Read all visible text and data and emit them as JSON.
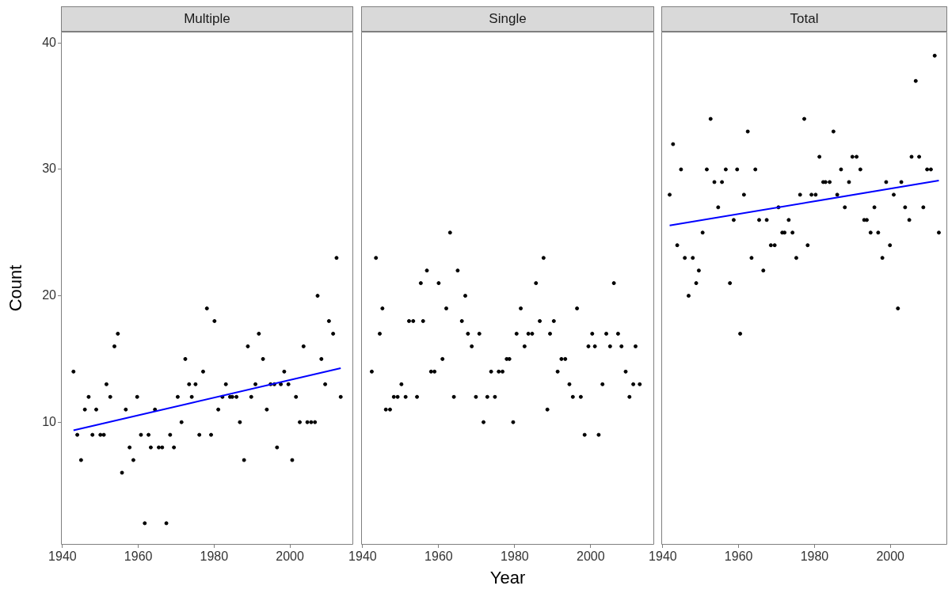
{
  "chart_data": [
    {
      "type": "scatter",
      "title": "Multiple",
      "ylabel": "Count",
      "xlim": [
        1939.6,
        2016.7
      ],
      "xticks": [
        1940,
        1960,
        1980,
        2000
      ],
      "ylim": [
        0.3,
        40.9
      ],
      "yticks": [
        10,
        20,
        30,
        40
      ],
      "marker": "circle",
      "grid": false,
      "series": [
        {
          "color": "#000000",
          "x": [
            1942.9,
            1943.9,
            1944.9,
            1945.9,
            1946.9,
            1947.9,
            1948.9,
            1950.0,
            1950.9,
            1951.6,
            1952.6,
            1953.7,
            1954.6,
            1955.7,
            1956.7,
            1957.7,
            1958.7,
            1959.7,
            1960.7,
            1961.7,
            1962.7,
            1963.3,
            1964.4,
            1965.4,
            1966.3,
            1967.4,
            1968.4,
            1969.4,
            1970.4,
            1971.4,
            1972.4,
            1973.4,
            1974.1,
            1975.1,
            1976.1,
            1977.1,
            1978.1,
            1979.2,
            1980.1,
            1981.1,
            1982.2,
            1983.1,
            1984.2,
            1984.8,
            1985.9,
            1986.8,
            1987.9,
            1988.9,
            1989.8,
            1990.9,
            1991.8,
            1992.9,
            1993.9,
            1994.9,
            1995.9,
            1996.6,
            1997.6,
            1998.5,
            1999.6,
            2000.6,
            2001.6,
            2002.6,
            2003.6,
            2004.6,
            2005.6,
            2006.6,
            2007.3,
            2008.3,
            2009.3,
            2010.3,
            2011.4,
            2012.3,
            2013.4
          ],
          "values": [
            14,
            9,
            7,
            11,
            12,
            9,
            11,
            9,
            9,
            13,
            12,
            16,
            17,
            6,
            11,
            8,
            7,
            12,
            9,
            2,
            9,
            8,
            11,
            8,
            8,
            2,
            9,
            8,
            12,
            10,
            15,
            13,
            12,
            13,
            9,
            14,
            19,
            9,
            18,
            11,
            12,
            13,
            12,
            12,
            12,
            10,
            7,
            16,
            12,
            13,
            17,
            15,
            11,
            13,
            13,
            8,
            13,
            14,
            13,
            7,
            12,
            10,
            16,
            10,
            10,
            10,
            20,
            15,
            13,
            18,
            17,
            23,
            12
          ]
        },
        {
          "type": "line",
          "marker": "none",
          "color": "#0000ff",
          "x": [
            1942.9,
            2013.4
          ],
          "values": [
            9.35,
            14.27
          ]
        }
      ]
    },
    {
      "type": "scatter",
      "title": "Single",
      "xlabel": "Year",
      "xlim": [
        1939.6,
        2016.7
      ],
      "xticks": [
        1940,
        1960,
        1980,
        2000
      ],
      "ylim": [
        0.3,
        40.9
      ],
      "yticks": [
        10,
        20,
        30,
        40
      ],
      "tick_labels": "x",
      "marker": "circle",
      "grid": false,
      "series": [
        {
          "color": "#000000",
          "x": [
            1942.4,
            1943.5,
            1944.5,
            1945.2,
            1946.1,
            1947.2,
            1948.2,
            1949.2,
            1950.2,
            1951.3,
            1952.2,
            1953.3,
            1954.3,
            1955.3,
            1955.9,
            1956.9,
            1958.0,
            1958.9,
            1960.0,
            1961.0,
            1962.0,
            1963.0,
            1964.0,
            1965.0,
            1966.1,
            1967.0,
            1967.7,
            1968.7,
            1969.8,
            1970.7,
            1971.8,
            1972.8,
            1973.8,
            1974.8,
            1975.8,
            1976.8,
            1977.9,
            1978.6,
            1979.6,
            1980.5,
            1981.6,
            1982.6,
            1983.6,
            1984.6,
            1985.6,
            1986.6,
            1987.6,
            1988.6,
            1989.3,
            1990.3,
            1991.3,
            1992.3,
            1993.3,
            1994.4,
            1995.3,
            1996.4,
            1997.4,
            1998.4,
            1999.4,
            2000.4,
            2001.1,
            2002.1,
            2003.1,
            2004.1,
            2005.1,
            2006.1,
            2007.2,
            2008.1,
            2009.2,
            2010.2,
            2011.2,
            2011.8,
            2012.9
          ],
          "values": [
            14,
            23,
            17,
            19,
            11,
            11,
            12,
            12,
            13,
            12,
            18,
            18,
            12,
            21,
            18,
            22,
            14,
            14,
            21,
            15,
            19,
            25,
            12,
            22,
            18,
            20,
            17,
            16,
            12,
            17,
            10,
            12,
            14,
            12,
            14,
            14,
            15,
            15,
            10,
            17,
            19,
            16,
            17,
            17,
            21,
            18,
            23,
            11,
            17,
            18,
            14,
            15,
            15,
            13,
            12,
            19,
            12,
            9,
            16,
            17,
            16,
            9,
            13,
            17,
            16,
            21,
            17,
            16,
            14,
            12,
            13,
            16,
            13
          ]
        }
      ]
    },
    {
      "type": "scatter",
      "title": "Total",
      "xlim": [
        1939.6,
        2015.0
      ],
      "xticks": [
        1940,
        1960,
        1980,
        2000
      ],
      "ylim": [
        0.3,
        40.9
      ],
      "yticks": [
        10,
        20,
        30,
        40
      ],
      "tick_labels": "x",
      "marker": "circle",
      "grid": false,
      "series": [
        {
          "color": "#000000",
          "x": [
            1941.8,
            1942.7,
            1943.8,
            1944.8,
            1945.8,
            1946.8,
            1947.9,
            1948.8,
            1949.5,
            1950.5,
            1951.6,
            1952.6,
            1953.6,
            1954.6,
            1955.6,
            1956.6,
            1957.7,
            1958.7,
            1959.6,
            1960.4,
            1961.4,
            1962.4,
            1963.4,
            1964.4,
            1965.4,
            1966.5,
            1967.4,
            1968.5,
            1969.5,
            1970.5,
            1971.5,
            1972.1,
            1973.2,
            1974.2,
            1975.2,
            1976.2,
            1977.3,
            1978.2,
            1979.2,
            1980.3,
            1981.3,
            1982.3,
            1982.9,
            1984.0,
            1985.0,
            1986.0,
            1987.0,
            1988.0,
            1989.1,
            1990.0,
            1991.1,
            1992.1,
            1993.1,
            1993.8,
            1994.8,
            1995.8,
            1996.8,
            1997.9,
            1998.9,
            1999.9,
            2000.9,
            2002.0,
            2002.9,
            2003.9,
            2005.0,
            2005.6,
            2006.7,
            2007.6,
            2008.7,
            2009.7,
            2010.7,
            2011.7,
            2012.8
          ],
          "values": [
            28,
            32,
            24,
            30,
            23,
            20,
            23,
            21,
            22,
            25,
            30,
            34,
            29,
            27,
            29,
            30,
            21,
            26,
            30,
            17,
            28,
            33,
            23,
            30,
            26,
            22,
            26,
            24,
            24,
            27,
            25,
            25,
            26,
            25,
            23,
            28,
            34,
            24,
            28,
            28,
            31,
            29,
            29,
            29,
            33,
            28,
            30,
            27,
            29,
            31,
            31,
            30,
            26,
            26,
            25,
            27,
            25,
            23,
            29,
            24,
            28,
            19,
            29,
            27,
            26,
            31,
            37,
            31,
            27,
            30,
            30,
            39,
            25
          ]
        },
        {
          "type": "line",
          "marker": "none",
          "color": "#0000ff",
          "x": [
            1941.8,
            2012.8
          ],
          "values": [
            25.56,
            29.12
          ]
        }
      ]
    }
  ]
}
